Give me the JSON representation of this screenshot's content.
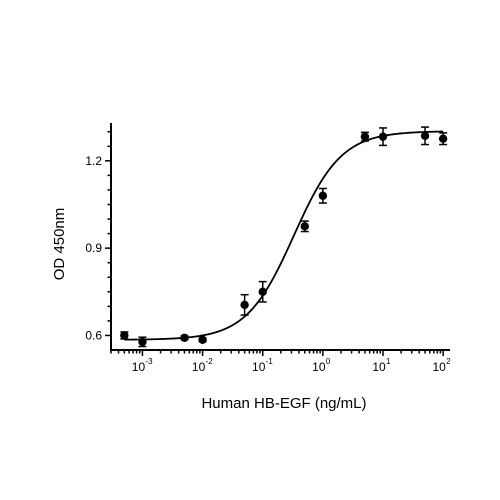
{
  "chart_data": {
    "type": "scatter",
    "title": "",
    "xlabel": "Human HB-EGF (ng/mL)",
    "ylabel": "OD 450nm",
    "x_scale": "log",
    "xlim": [
      0.0003,
      130
    ],
    "ylim": [
      0.55,
      1.33
    ],
    "x_ticks": [
      0.001,
      0.01,
      0.1,
      1,
      10,
      100
    ],
    "x_tick_labels": [
      {
        "base": "10",
        "exp": "-3"
      },
      {
        "base": "10",
        "exp": "-2"
      },
      {
        "base": "10",
        "exp": "-1"
      },
      {
        "base": "10",
        "exp": "0"
      },
      {
        "base": "10",
        "exp": "1"
      },
      {
        "base": "10",
        "exp": "2"
      }
    ],
    "y_ticks": [
      0.6,
      0.9,
      1.2
    ],
    "y_tick_labels": [
      "0.6",
      "0.9",
      "1.2"
    ],
    "grid": false,
    "legend": "none",
    "marker_color": "#000000",
    "series": [
      {
        "name": "",
        "points": [
          {
            "x": 0.0005,
            "y": 0.6,
            "err": 0.012
          },
          {
            "x": 0.001,
            "y": 0.578,
            "err": 0.016
          },
          {
            "x": 0.005,
            "y": 0.592,
            "err": 0.006
          },
          {
            "x": 0.01,
            "y": 0.585,
            "err": 0.006
          },
          {
            "x": 0.05,
            "y": 0.705,
            "err": 0.035
          },
          {
            "x": 0.1,
            "y": 0.75,
            "err": 0.035
          },
          {
            "x": 0.5,
            "y": 0.975,
            "err": 0.018
          },
          {
            "x": 1,
            "y": 1.08,
            "err": 0.025
          },
          {
            "x": 5,
            "y": 1.283,
            "err": 0.015
          },
          {
            "x": 10,
            "y": 1.283,
            "err": 0.03
          },
          {
            "x": 50,
            "y": 1.286,
            "err": 0.03
          },
          {
            "x": 100,
            "y": 1.276,
            "err": 0.02
          }
        ],
        "fit": {
          "model": "4PL",
          "bottom": 0.585,
          "top": 1.302,
          "ec50": 0.33,
          "hill": 1.1
        }
      }
    ]
  }
}
